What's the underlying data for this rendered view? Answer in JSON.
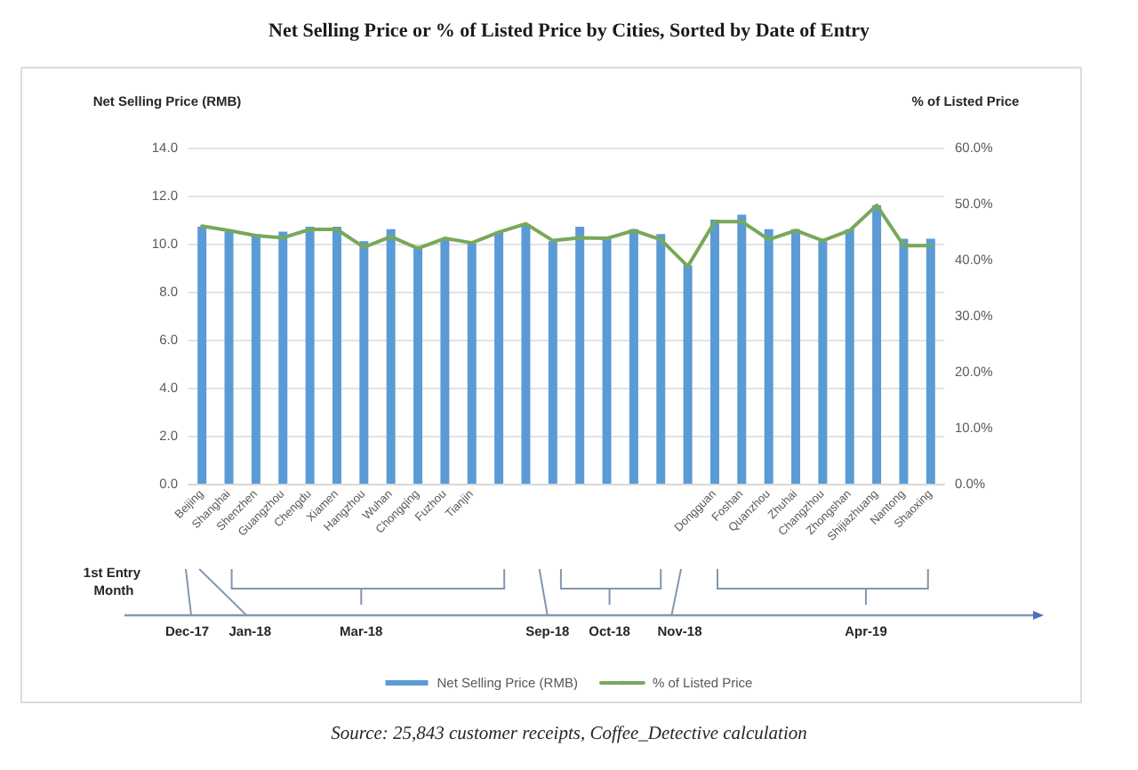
{
  "chart_data": {
    "type": "bar",
    "title": "Net Selling Price or % of Listed Price by Cities, Sorted by Date of Entry",
    "ylabel": "Net Selling Price (RMB)",
    "y2label": "% of Listed Price",
    "categories": [
      "Beijing",
      "Shanghai",
      "Shenzhen",
      "Guangzhou",
      "Chengdu",
      "Xiamen",
      "Hangzhou",
      "Wuhan",
      "Chongqing",
      "Fuzhou",
      "Tianjin",
      null,
      null,
      null,
      null,
      null,
      null,
      null,
      null,
      "Dongguan",
      "Foshan",
      "Quanzhou",
      "Zhuhai",
      "Changzhou",
      "Zhongshan",
      "Shijiazhuang",
      "Nantong",
      "Shaoxing"
    ],
    "series": [
      {
        "name": "Net Selling Price (RMB)",
        "type": "bar",
        "color": "#5b9bd5",
        "values": [
          10.7,
          10.5,
          10.4,
          10.5,
          10.7,
          10.7,
          10.1,
          10.6,
          9.9,
          10.2,
          10.0,
          10.5,
          10.8,
          10.1,
          10.7,
          10.2,
          10.6,
          10.4,
          9.1,
          11.0,
          11.2,
          10.6,
          10.6,
          10.1,
          10.6,
          11.6,
          10.2,
          10.2
        ]
      },
      {
        "name": "% of Listed Price",
        "type": "line",
        "axis": "y2",
        "color": "#78a85a",
        "marker": "none",
        "values": [
          46.0,
          45.2,
          44.3,
          43.9,
          45.4,
          45.4,
          42.2,
          44.1,
          42.0,
          43.8,
          43.0,
          44.9,
          46.4,
          43.4,
          43.9,
          43.8,
          45.2,
          43.6,
          38.8,
          46.8,
          46.8,
          43.6,
          45.2,
          43.4,
          45.2,
          49.7,
          42.5,
          42.5
        ]
      }
    ],
    "ylim": [
      0,
      14
    ],
    "yticks": [
      {
        "value": 0,
        "label": "0.0"
      },
      {
        "value": 2,
        "label": "2.0"
      },
      {
        "value": 4,
        "label": "4.0"
      },
      {
        "value": 6,
        "label": "6.0"
      },
      {
        "value": 8,
        "label": "8.0"
      },
      {
        "value": 10,
        "label": "10.0"
      },
      {
        "value": 12,
        "label": "12.0"
      },
      {
        "value": 14,
        "label": "14.0"
      }
    ],
    "y2lim": [
      0,
      60
    ],
    "y2ticks": [
      {
        "value": 0,
        "label": "0.0%"
      },
      {
        "value": 10,
        "label": "10.0%"
      },
      {
        "value": 20,
        "label": "20.0%"
      },
      {
        "value": 30,
        "label": "30.0%"
      },
      {
        "value": 40,
        "label": "40.0%"
      },
      {
        "value": 50,
        "label": "50.0%"
      },
      {
        "value": 60,
        "label": "60.0%"
      }
    ],
    "grid": "y",
    "legend": "bottom",
    "annotations": [
      "1st Entry Month",
      "Dec-17",
      "Jan-18",
      "Mar-18",
      "Sep-18",
      "Oct-18",
      "Nov-18",
      "Apr-19",
      "Source: 25,843 customer receipts, Coffee_Detective calculation"
    ]
  }
}
